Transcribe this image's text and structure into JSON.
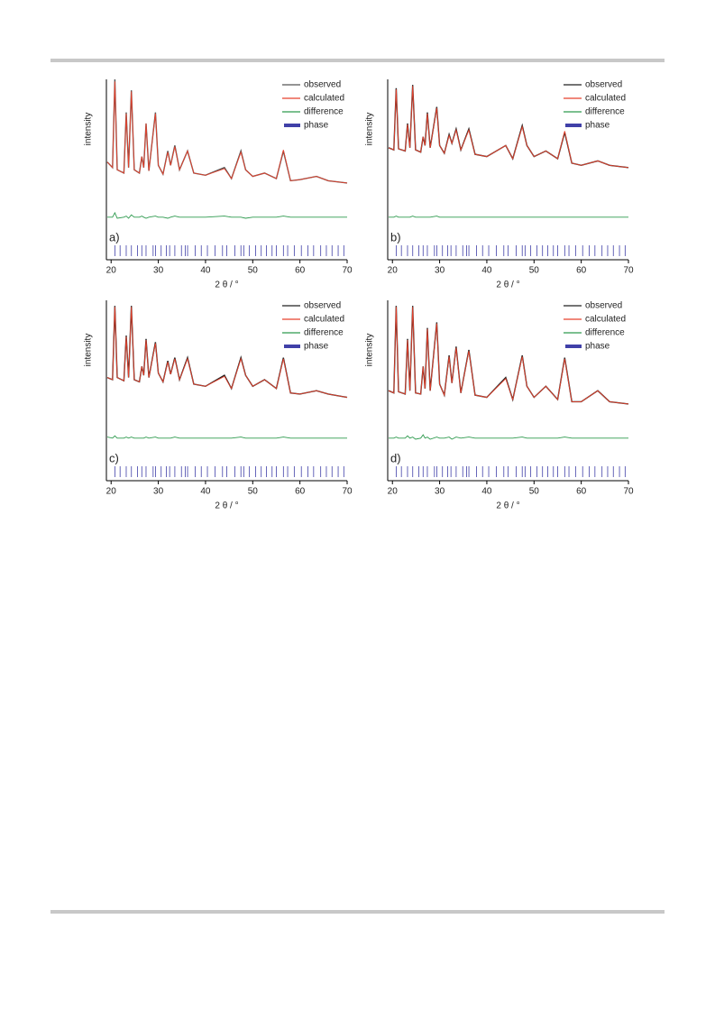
{
  "chart_data": [
    {
      "type": "line",
      "panel_label": "a)",
      "xlabel": "2 θ / °",
      "ylabel": "intensity",
      "xlim": [
        19,
        70
      ],
      "xticks": [
        20,
        30,
        40,
        50,
        60,
        70
      ],
      "ylim": [
        -35,
        100
      ],
      "x": [
        19.2,
        20.3,
        20.8,
        21.3,
        22.7,
        23.2,
        23.7,
        24.3,
        24.9,
        26.0,
        26.5,
        26.9,
        27.4,
        28.0,
        29.4,
        30.0,
        31.0,
        32.0,
        32.6,
        33.5,
        34.5,
        36.2,
        37.5,
        40.0,
        44.0,
        45.5,
        47.5,
        48.5,
        50.0,
        52.5,
        55.0,
        56.5,
        58.0,
        60.0,
        63.5,
        66.0,
        70.0
      ],
      "series": [
        {
          "name": "observed",
          "color": "#555555",
          "values": [
            25,
            20,
            100,
            18,
            15,
            70,
            20,
            90,
            18,
            15,
            30,
            20,
            60,
            17,
            70,
            22,
            14,
            35,
            22,
            40,
            18,
            35,
            15,
            13,
            20,
            10,
            35,
            18,
            12,
            15,
            10,
            35,
            8,
            9,
            12,
            8,
            6
          ]
        },
        {
          "name": "calculated",
          "color": "#e8412c",
          "values": [
            25,
            20,
            98,
            18,
            15,
            69,
            20,
            89,
            18,
            15,
            30,
            20,
            60,
            17,
            69,
            22,
            14,
            34,
            22,
            39,
            18,
            35,
            15,
            13,
            19,
            10,
            34,
            18,
            12,
            15,
            10,
            36,
            8,
            9,
            12,
            8,
            6
          ]
        },
        {
          "name": "difference",
          "color": "#2e9a4e",
          "values": [
            -25,
            -25,
            -21,
            -26,
            -25,
            -24,
            -26,
            -23,
            -25,
            -25,
            -24,
            -25,
            -26,
            -25,
            -24,
            -25,
            -25,
            -26,
            -25,
            -24,
            -25,
            -25,
            -25,
            -25,
            -24,
            -25,
            -25,
            -26,
            -25,
            -25,
            -25,
            -24,
            -25,
            -25,
            -25,
            -25,
            -25
          ]
        }
      ],
      "phase": {
        "name": "phase",
        "color": "#4040a8",
        "positions": [
          20.8,
          21.9,
          23.2,
          24.3,
          25.6,
          26.5,
          27.4,
          28.9,
          29.4,
          30.6,
          31.7,
          32.4,
          33.5,
          34.9,
          35.7,
          36.2,
          37.8,
          39.1,
          40.4,
          42.0,
          43.6,
          44.5,
          46.2,
          47.5,
          48.1,
          49.3,
          50.6,
          51.8,
          52.9,
          54.1,
          55.0,
          56.5,
          57.4,
          58.8,
          60.3,
          61.7,
          62.9,
          64.4,
          65.6,
          66.8,
          68.1,
          69.3
        ]
      }
    },
    {
      "type": "line",
      "panel_label": "b)",
      "xlabel": "2 θ / °",
      "ylabel": "intensity",
      "xlim": [
        19,
        70
      ],
      "xticks": [
        20,
        30,
        40,
        50,
        60,
        70
      ],
      "ylim": [
        -35,
        100
      ],
      "x": [
        19.2,
        20.3,
        20.8,
        21.3,
        22.7,
        23.2,
        23.7,
        24.3,
        24.9,
        26.0,
        26.5,
        26.9,
        27.4,
        28.0,
        29.4,
        30.0,
        31.0,
        32.0,
        32.6,
        33.5,
        34.5,
        36.2,
        37.5,
        40.0,
        44.0,
        45.5,
        47.5,
        48.5,
        50.0,
        52.5,
        55.0,
        56.5,
        58.0,
        60.0,
        63.5,
        66.0,
        70.0
      ],
      "series": [
        {
          "name": "observed",
          "color": "#222222",
          "values": [
            38,
            36,
            92,
            37,
            35,
            60,
            38,
            95,
            36,
            34,
            48,
            40,
            70,
            38,
            75,
            40,
            33,
            50,
            42,
            55,
            36,
            55,
            32,
            30,
            40,
            28,
            58,
            40,
            30,
            35,
            28,
            52,
            24,
            22,
            26,
            22,
            20
          ]
        },
        {
          "name": "calculated",
          "color": "#e8412c",
          "values": [
            38,
            36,
            91,
            37,
            35,
            59,
            38,
            94,
            36,
            34,
            48,
            40,
            69,
            38,
            74,
            40,
            33,
            49,
            42,
            54,
            36,
            54,
            32,
            30,
            40,
            28,
            57,
            40,
            30,
            35,
            28,
            53,
            24,
            22,
            26,
            22,
            20
          ]
        },
        {
          "name": "difference",
          "color": "#2e9a4e",
          "values": [
            -25,
            -25,
            -24,
            -25,
            -25,
            -25,
            -25,
            -24,
            -25,
            -25,
            -25,
            -25,
            -25,
            -25,
            -24,
            -25,
            -25,
            -25,
            -25,
            -25,
            -25,
            -25,
            -25,
            -25,
            -25,
            -25,
            -25,
            -25,
            -25,
            -25,
            -25,
            -25,
            -25,
            -25,
            -25,
            -25,
            -25
          ]
        }
      ],
      "phase": {
        "name": "phase",
        "color": "#4040a8",
        "positions": [
          20.8,
          21.9,
          23.2,
          24.3,
          25.6,
          26.5,
          27.4,
          28.9,
          29.4,
          30.6,
          31.7,
          32.4,
          33.5,
          34.9,
          35.7,
          36.2,
          37.8,
          39.1,
          40.4,
          42.0,
          43.6,
          44.5,
          46.2,
          47.5,
          48.1,
          49.3,
          50.6,
          51.8,
          52.9,
          54.1,
          55.0,
          56.5,
          57.4,
          58.8,
          60.3,
          61.7,
          62.9,
          64.4,
          65.6,
          66.8,
          68.1,
          69.3
        ]
      }
    },
    {
      "type": "line",
      "panel_label": "c)",
      "xlabel": "2 θ / °",
      "ylabel": "intensity",
      "xlim": [
        19,
        70
      ],
      "xticks": [
        20,
        30,
        40,
        50,
        60,
        70
      ],
      "ylim": [
        -35,
        100
      ],
      "x": [
        19.2,
        20.3,
        20.8,
        21.3,
        22.7,
        23.2,
        23.7,
        24.3,
        24.9,
        26.0,
        26.5,
        26.9,
        27.4,
        28.0,
        29.4,
        30.0,
        31.0,
        32.0,
        32.6,
        33.5,
        34.5,
        36.2,
        37.5,
        40.0,
        44.0,
        45.5,
        47.5,
        48.5,
        50.0,
        52.5,
        55.0,
        56.5,
        58.0,
        60.0,
        63.5,
        66.0,
        70.0
      ],
      "series": [
        {
          "name": "observed",
          "color": "#222222",
          "values": [
            30,
            28,
            95,
            30,
            27,
            68,
            30,
            95,
            28,
            26,
            40,
            32,
            65,
            30,
            62,
            34,
            26,
            45,
            33,
            48,
            28,
            48,
            24,
            22,
            32,
            20,
            48,
            32,
            22,
            28,
            20,
            48,
            16,
            15,
            18,
            15,
            12
          ]
        },
        {
          "name": "calculated",
          "color": "#e8412c",
          "values": [
            30,
            28,
            94,
            30,
            27,
            67,
            30,
            94,
            28,
            26,
            40,
            32,
            64,
            30,
            61,
            34,
            26,
            44,
            33,
            47,
            28,
            47,
            24,
            22,
            31,
            20,
            47,
            32,
            22,
            28,
            20,
            47,
            16,
            15,
            18,
            15,
            12
          ]
        },
        {
          "name": "difference",
          "color": "#2e9a4e",
          "values": [
            -24,
            -25,
            -23,
            -25,
            -25,
            -24,
            -25,
            -24,
            -25,
            -25,
            -25,
            -25,
            -24,
            -25,
            -24,
            -25,
            -25,
            -25,
            -25,
            -24,
            -25,
            -25,
            -25,
            -25,
            -25,
            -25,
            -24,
            -25,
            -25,
            -25,
            -25,
            -24,
            -25,
            -25,
            -25,
            -25,
            -25
          ]
        }
      ],
      "phase": {
        "name": "phase",
        "color": "#4040a8",
        "positions": [
          20.8,
          21.9,
          23.2,
          24.3,
          25.6,
          26.5,
          27.4,
          28.9,
          29.4,
          30.6,
          31.7,
          32.4,
          33.5,
          34.9,
          35.7,
          36.2,
          37.8,
          39.1,
          40.4,
          42.0,
          43.6,
          44.5,
          46.2,
          47.5,
          48.1,
          49.3,
          50.6,
          51.8,
          52.9,
          54.1,
          55.0,
          56.5,
          57.4,
          58.8,
          60.3,
          61.7,
          62.9,
          64.4,
          65.6,
          66.8,
          68.1,
          69.3
        ]
      }
    },
    {
      "type": "line",
      "panel_label": "d)",
      "xlabel": "2 θ / °",
      "ylabel": "intensity",
      "xlim": [
        19,
        70
      ],
      "xticks": [
        20,
        30,
        40,
        50,
        60,
        70
      ],
      "ylim": [
        -35,
        100
      ],
      "x": [
        19.2,
        20.3,
        20.8,
        21.3,
        22.7,
        23.2,
        23.7,
        24.3,
        24.9,
        26.0,
        26.5,
        26.9,
        27.4,
        28.0,
        29.4,
        30.0,
        31.0,
        32.0,
        32.6,
        33.5,
        34.5,
        36.2,
        37.5,
        40.0,
        44.0,
        45.5,
        47.5,
        48.5,
        50.0,
        52.5,
        55.0,
        56.5,
        58.0,
        60.0,
        63.5,
        66.0,
        70.0
      ],
      "series": [
        {
          "name": "observed",
          "color": "#222222",
          "values": [
            18,
            16,
            95,
            17,
            15,
            65,
            18,
            95,
            16,
            15,
            40,
            20,
            75,
            18,
            80,
            24,
            14,
            50,
            25,
            58,
            16,
            55,
            14,
            12,
            30,
            10,
            50,
            22,
            12,
            22,
            10,
            48,
            8,
            8,
            18,
            8,
            6
          ]
        },
        {
          "name": "calculated",
          "color": "#e8412c",
          "values": [
            18,
            16,
            94,
            17,
            15,
            64,
            18,
            94,
            16,
            15,
            40,
            20,
            74,
            18,
            79,
            24,
            14,
            49,
            25,
            57,
            16,
            54,
            14,
            12,
            29,
            10,
            49,
            22,
            12,
            22,
            10,
            47,
            8,
            8,
            18,
            8,
            6
          ]
        },
        {
          "name": "difference",
          "color": "#2e9a4e",
          "values": [
            -25,
            -25,
            -24,
            -25,
            -25,
            -23,
            -25,
            -24,
            -26,
            -25,
            -22,
            -25,
            -24,
            -26,
            -24,
            -25,
            -25,
            -24,
            -26,
            -24,
            -25,
            -24,
            -25,
            -25,
            -25,
            -25,
            -24,
            -25,
            -25,
            -25,
            -25,
            -24,
            -25,
            -25,
            -25,
            -25,
            -25
          ]
        }
      ],
      "phase": {
        "name": "phase",
        "color": "#4040a8",
        "positions": [
          20.8,
          21.9,
          23.2,
          24.3,
          25.6,
          26.5,
          27.4,
          28.9,
          29.4,
          30.6,
          31.7,
          32.4,
          33.5,
          34.9,
          35.7,
          36.2,
          37.8,
          39.1,
          40.4,
          42.0,
          43.6,
          44.5,
          46.2,
          47.5,
          48.1,
          49.3,
          50.6,
          51.8,
          52.9,
          54.1,
          55.0,
          56.5,
          57.4,
          58.8,
          60.3,
          61.7,
          62.9,
          64.4,
          65.6,
          66.8,
          68.1,
          69.3
        ]
      }
    }
  ]
}
